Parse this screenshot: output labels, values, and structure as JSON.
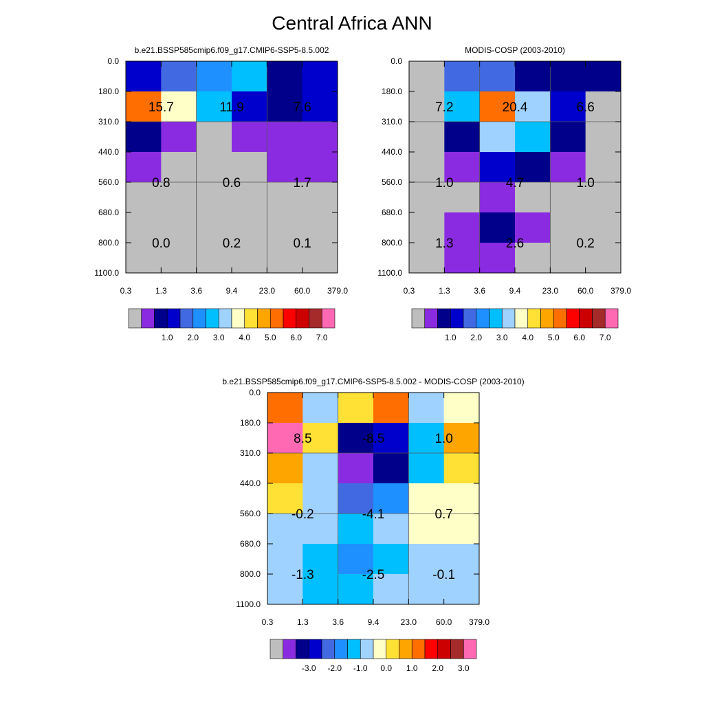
{
  "title": "Central Africa ANN",
  "palette": {
    "obs_levels": [
      "#bebebe",
      "#8a2be2",
      "#00008b",
      "#0000cd",
      "#4169e1",
      "#1e90ff",
      "#00bfff",
      "#a0d2ff",
      "#ffffc8",
      "#ffe135",
      "#ffa500",
      "#ff6e00",
      "#ff0000",
      "#cd0000",
      "#a52a2a",
      "#ff69b4"
    ],
    "diff_levels": [
      "#bebebe",
      "#8a2be2",
      "#00008b",
      "#0000cd",
      "#4169e1",
      "#1e90ff",
      "#00bfff",
      "#a0d2ff",
      "#ffffc8",
      "#ffe135",
      "#ffa500",
      "#ff6e00",
      "#ff0000",
      "#cd0000",
      "#a52a2a",
      "#ff69b4"
    ]
  },
  "chart_data": [
    {
      "id": "model",
      "type": "heatmap",
      "title": "b.e21.BSSP585cmip6.f09_g17.CMIP6-SSP5-8.5.002",
      "x_ticks": [
        "0.3",
        "1.3",
        "3.6",
        "9.4",
        "23.0",
        "60.0",
        "379.0"
      ],
      "y_ticks": [
        "0.0",
        "180.0",
        "310.0",
        "440.0",
        "560.0",
        "680.0",
        "800.0",
        "1100.0"
      ],
      "cells": [
        [
          "#0000cd",
          "#4169e1",
          "#1e90ff",
          "#00bfff",
          "#00008b",
          "#0000cd"
        ],
        [
          "#ff6e00",
          "#ffffc8",
          "#00bfff",
          "#0000cd",
          "#00008b",
          "#0000cd"
        ],
        [
          "#00008b",
          "#8a2be2",
          "#bebebe",
          "#8a2be2",
          "#8a2be2",
          "#8a2be2"
        ],
        [
          "#8a2be2",
          "#bebebe",
          "#bebebe",
          "#bebebe",
          "#8a2be2",
          "#8a2be2"
        ],
        [
          "#bebebe",
          "#bebebe",
          "#bebebe",
          "#bebebe",
          "#bebebe",
          "#bebebe"
        ],
        [
          "#bebebe",
          "#bebebe",
          "#bebebe",
          "#bebebe",
          "#bebebe",
          "#bebebe"
        ],
        [
          "#bebebe",
          "#bebebe",
          "#bebebe",
          "#bebebe",
          "#bebebe",
          "#bebebe"
        ]
      ],
      "labels": [
        [
          "15.7",
          "11.9",
          "7.6"
        ],
        [
          "0.8",
          "0.6",
          "1.7"
        ],
        [
          "0.0",
          "0.2",
          "0.1"
        ]
      ],
      "colorbar_ticks": [
        "1.0",
        "2.0",
        "3.0",
        "4.0",
        "5.0",
        "6.0",
        "7.0"
      ]
    },
    {
      "id": "obs",
      "type": "heatmap",
      "title": "MODIS-COSP (2003-2010)",
      "x_ticks": [
        "0.3",
        "1.3",
        "3.6",
        "9.4",
        "23.0",
        "60.0",
        "379.0"
      ],
      "y_ticks": [
        "0.0",
        "180.0",
        "310.0",
        "440.0",
        "560.0",
        "680.0",
        "800.0",
        "1100.0"
      ],
      "cells": [
        [
          "#bebebe",
          "#4169e1",
          "#4169e1",
          "#00008b",
          "#00008b",
          "#00008b"
        ],
        [
          "#bebebe",
          "#00bfff",
          "#ff6e00",
          "#a0d2ff",
          "#0000cd",
          "#bebebe"
        ],
        [
          "#bebebe",
          "#00008b",
          "#a0d2ff",
          "#00bfff",
          "#00008b",
          "#bebebe"
        ],
        [
          "#bebebe",
          "#8a2be2",
          "#0000cd",
          "#00008b",
          "#8a2be2",
          "#bebebe"
        ],
        [
          "#bebebe",
          "#bebebe",
          "#8a2be2",
          "#bebebe",
          "#bebebe",
          "#bebebe"
        ],
        [
          "#bebebe",
          "#8a2be2",
          "#00008b",
          "#8a2be2",
          "#bebebe",
          "#bebebe"
        ],
        [
          "#bebebe",
          "#8a2be2",
          "#8a2be2",
          "#bebebe",
          "#bebebe",
          "#bebebe"
        ]
      ],
      "labels": [
        [
          "7.2",
          "20.4",
          "6.6"
        ],
        [
          "1.0",
          "4.7",
          "1.0"
        ],
        [
          "1.3",
          "2.6",
          "0.2"
        ]
      ],
      "colorbar_ticks": [
        "1.0",
        "2.0",
        "3.0",
        "4.0",
        "5.0",
        "6.0",
        "7.0"
      ]
    },
    {
      "id": "diff",
      "type": "heatmap",
      "title": "b.e21.BSSP585cmip6.f09_g17.CMIP6-SSP5-8.5.002 - MODIS-COSP (2003-2010)",
      "x_ticks": [
        "0.3",
        "1.3",
        "3.6",
        "9.4",
        "23.0",
        "60.0",
        "379.0"
      ],
      "y_ticks": [
        "0.0",
        "180.0",
        "310.0",
        "440.0",
        "560.0",
        "680.0",
        "800.0",
        "1100.0"
      ],
      "cells": [
        [
          "#ff6e00",
          "#a0d2ff",
          "#ffe135",
          "#ff6e00",
          "#a0d2ff",
          "#ffffc8"
        ],
        [
          "#ff69b4",
          "#ffe135",
          "#00008b",
          "#0000cd",
          "#00bfff",
          "#ffa500"
        ],
        [
          "#ffa500",
          "#a0d2ff",
          "#8a2be2",
          "#00008b",
          "#00bfff",
          "#ffe135"
        ],
        [
          "#ffe135",
          "#a0d2ff",
          "#4169e1",
          "#1e90ff",
          "#ffffc8",
          "#ffffc8"
        ],
        [
          "#a0d2ff",
          "#a0d2ff",
          "#00bfff",
          "#a0d2ff",
          "#ffffc8",
          "#ffffc8"
        ],
        [
          "#a0d2ff",
          "#00bfff",
          "#1e90ff",
          "#00bfff",
          "#a0d2ff",
          "#a0d2ff"
        ],
        [
          "#a0d2ff",
          "#00bfff",
          "#00bfff",
          "#a0d2ff",
          "#a0d2ff",
          "#a0d2ff"
        ]
      ],
      "labels": [
        [
          "8.5",
          "-8.5",
          "1.0"
        ],
        [
          "-0.2",
          "-4.1",
          "0.7"
        ],
        [
          "-1.3",
          "-2.5",
          "-0.1"
        ]
      ],
      "colorbar_ticks": [
        "-3.0",
        "-2.0",
        "-1.0",
        "0.0",
        "1.0",
        "2.0",
        "3.0"
      ]
    }
  ]
}
